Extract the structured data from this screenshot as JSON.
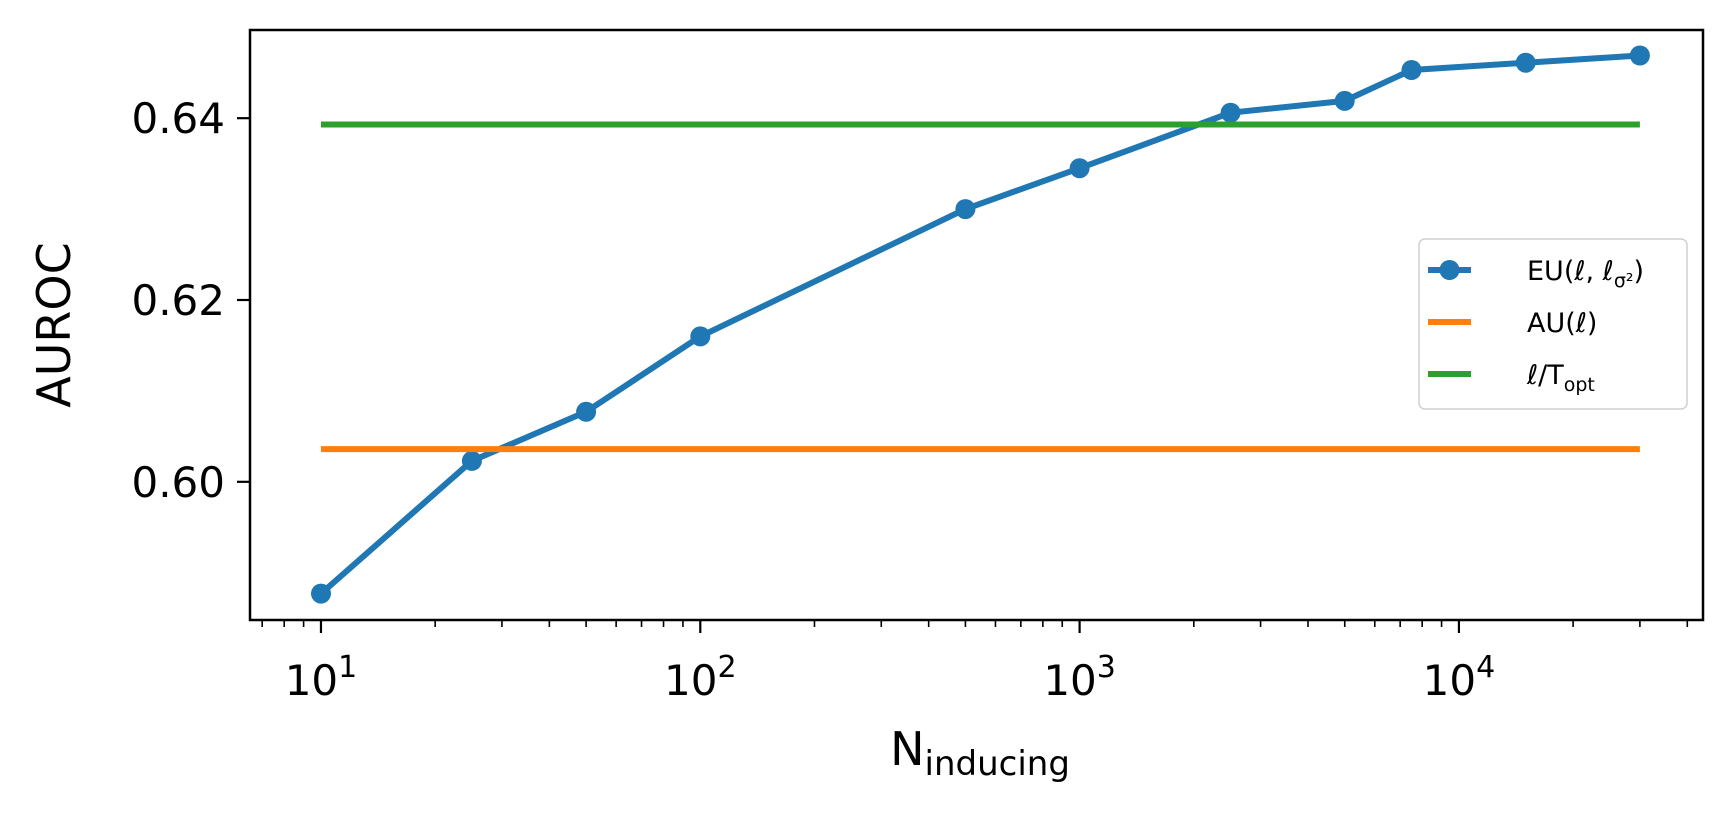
{
  "chart_data": {
    "type": "line",
    "xlabel": {
      "main": "N",
      "sub": "inducing"
    },
    "ylabel": "AUROC",
    "xscale": "log",
    "xlim": [
      6.5,
      44000
    ],
    "ylim": [
      0.5848,
      0.6497
    ],
    "grid": false,
    "legend_position": "center-right",
    "x_ticks": [
      {
        "value": 10,
        "base": "10",
        "exp": "1"
      },
      {
        "value": 100,
        "base": "10",
        "exp": "2"
      },
      {
        "value": 1000,
        "base": "10",
        "exp": "3"
      },
      {
        "value": 10000,
        "base": "10",
        "exp": "4"
      }
    ],
    "y_ticks": [
      {
        "value": 0.6,
        "label": "0.60"
      },
      {
        "value": 0.62,
        "label": "0.62"
      },
      {
        "value": 0.64,
        "label": "0.64"
      }
    ],
    "series": [
      {
        "name": "EU(ℓ, ℓσ²)",
        "legend": {
          "main": "EU(ℓ, ℓ",
          "sub": "σ²",
          "tail": ")"
        },
        "kind": "line-marker",
        "color": "#1f77b4",
        "x": [
          10,
          25,
          50,
          100,
          500,
          1000,
          2500,
          5000,
          7500,
          15000,
          30000
        ],
        "y": [
          0.5877,
          0.6023,
          0.6077,
          0.616,
          0.63,
          0.6345,
          0.6406,
          0.6419,
          0.6453,
          0.6461,
          0.6469
        ]
      },
      {
        "name": "AU(ℓ)",
        "legend": {
          "main": "AU(ℓ)",
          "sub": "",
          "tail": ""
        },
        "kind": "hline",
        "color": "#ff7f0e",
        "x": [
          10,
          30000
        ],
        "y": [
          0.6036,
          0.6036
        ]
      },
      {
        "name": "ℓ/Topt",
        "legend": {
          "main": "ℓ/T",
          "sub": "opt",
          "tail": ""
        },
        "kind": "hline",
        "color": "#2ca02c",
        "x": [
          10,
          30000
        ],
        "y": [
          0.6393,
          0.6393
        ]
      }
    ]
  }
}
